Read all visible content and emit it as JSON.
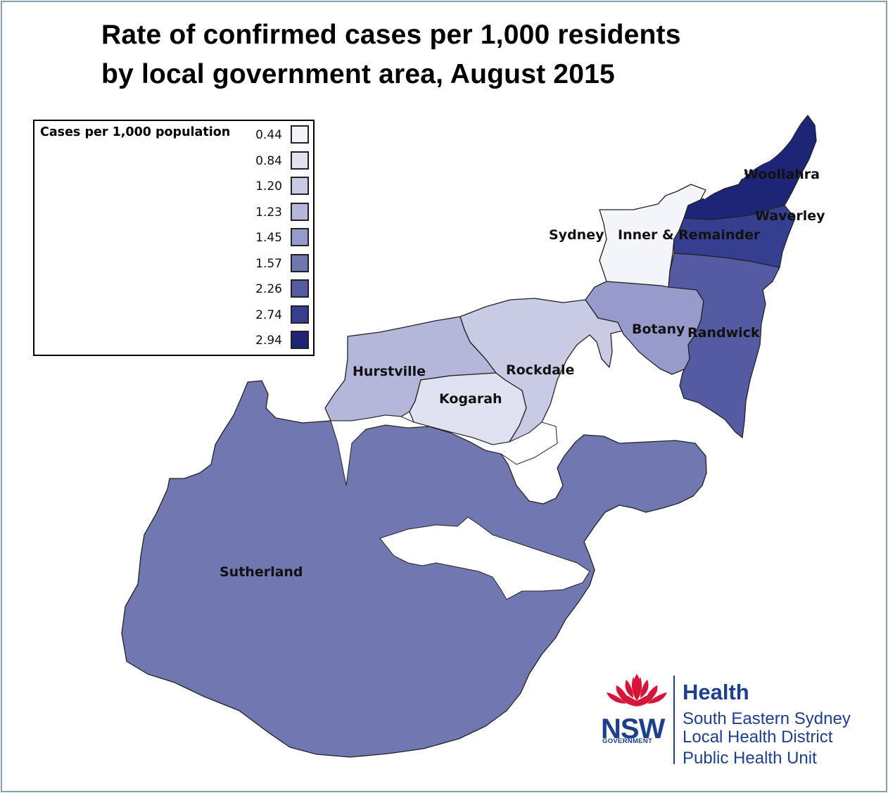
{
  "title": {
    "line1": "Rate of confirmed cases per 1,000 residents",
    "line2": "by local government area, August 2015"
  },
  "legend": {
    "title": "Cases per 1,000 population",
    "classes": [
      {
        "value": "0.44",
        "color": "#f4f4fb"
      },
      {
        "value": "0.84",
        "color": "#e0e2f1"
      },
      {
        "value": "1.20",
        "color": "#c9cbe5"
      },
      {
        "value": "1.23",
        "color": "#b4b7da"
      },
      {
        "value": "1.45",
        "color": "#979bcb"
      },
      {
        "value": "1.57",
        "color": "#7077b1"
      },
      {
        "value": "2.26",
        "color": "#545ba2"
      },
      {
        "value": "2.74",
        "color": "#363f8f"
      },
      {
        "value": "2.94",
        "color": "#1f2576"
      }
    ]
  },
  "regions": {
    "sydney": {
      "name": "Sydney",
      "color": "#f4f4fb"
    },
    "inner_remainder": {
      "name": "Inner & Remainder",
      "color": "#f4f4fb"
    },
    "woollahra": {
      "name": "Woollahra",
      "color": "#1f2576"
    },
    "waverley": {
      "name": "Waverley",
      "color": "#363f8f"
    },
    "randwick": {
      "name": "Randwick",
      "color": "#545ba2"
    },
    "botany": {
      "name": "Botany",
      "color": "#979bcb"
    },
    "rockdale": {
      "name": "Rockdale",
      "color": "#c9cbe5"
    },
    "hurstville": {
      "name": "Hurstville",
      "color": "#b4b7da"
    },
    "kogarah": {
      "name": "Kogarah",
      "color": "#e0e2f1"
    },
    "sutherland": {
      "name": "Sutherland",
      "color": "#7077b1"
    }
  },
  "logo": {
    "nsw": "NSW",
    "government": "GOVERNMENT",
    "health": "Health",
    "line1": "South Eastern Sydney",
    "line2": "Local Health District",
    "line3": "Public Health Unit"
  },
  "colors": {
    "frame": "#8a9db0",
    "logo_blue": "#1d3f8c",
    "waratah_red": "#d7153a"
  }
}
